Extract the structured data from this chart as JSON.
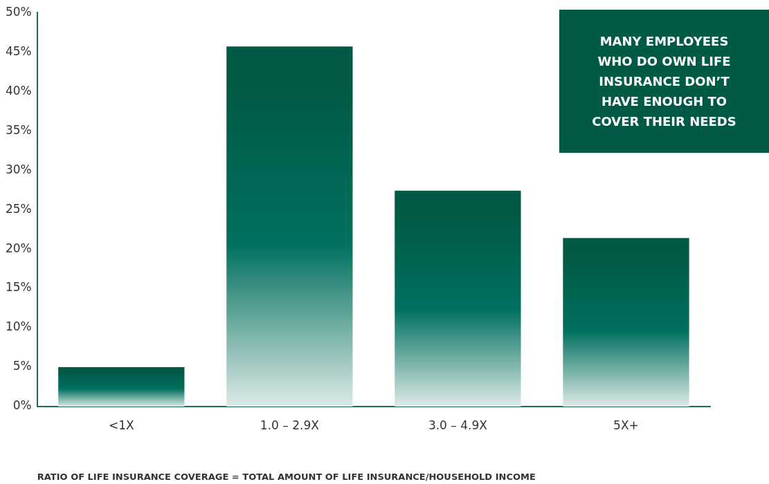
{
  "chart_data": {
    "type": "bar",
    "categories": [
      "<1X",
      "1.0 – 2.9X",
      "3.0 – 4.9X",
      "5X+"
    ],
    "values": [
      5,
      45.7,
      27.4,
      21.4
    ],
    "color": "#005a46",
    "ylim": [
      0,
      50
    ],
    "yticks": [
      {
        "value": 0,
        "label": "0%"
      },
      {
        "value": 5,
        "label": "5%"
      },
      {
        "value": 10,
        "label": "10%"
      },
      {
        "value": 15,
        "label": "15%"
      },
      {
        "value": 20,
        "label": "20%"
      },
      {
        "value": 25,
        "label": "25%"
      },
      {
        "value": 30,
        "label": "30%"
      },
      {
        "value": 35,
        "label": "35%"
      },
      {
        "value": 40,
        "label": "40%"
      },
      {
        "value": 45,
        "label": "45%"
      },
      {
        "value": 50,
        "label": "50%"
      }
    ],
    "xlabel": "RATIO OF LIFE INSURANCE COVERAGE = TOTAL AMOUNT OF LIFE INSURANCE/HOUSEHOLD INCOME",
    "annotations": [
      "MANY EMPLOYEES WHO DO OWN LIFE INSURANCE DON’T HAVE ENOUGH TO COVER THEIR NEEDS"
    ],
    "grid": false,
    "legend": false
  }
}
